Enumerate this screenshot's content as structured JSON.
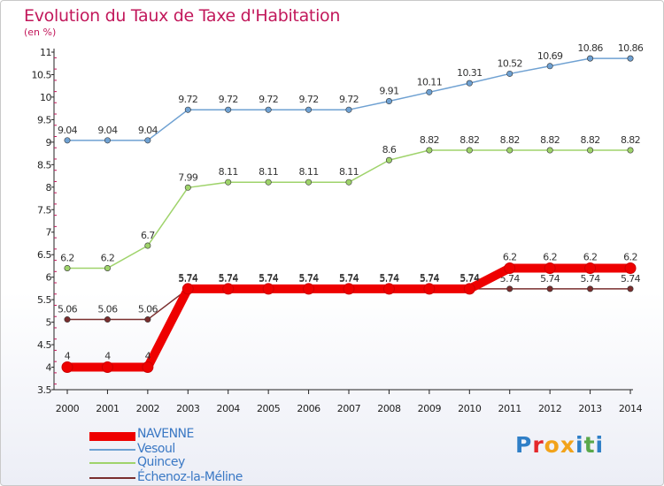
{
  "title": "Evolution du Taux de Taxe d'Habitation",
  "subtitle": "(en %)",
  "logo": {
    "text": "Proxiti",
    "letter_colors": [
      "#2f7fc7",
      "#e4282b",
      "#f2a31b",
      "#f2a31b",
      "#2f7fc7",
      "#5aa84a",
      "#2f7fc7"
    ]
  },
  "chart_data": {
    "type": "line",
    "x": [
      "2000",
      "2001",
      "2002",
      "2003",
      "2004",
      "2005",
      "2006",
      "2007",
      "2008",
      "2009",
      "2010",
      "2011",
      "2012",
      "2013",
      "2014"
    ],
    "ylim": [
      3.5,
      11
    ],
    "yticks": [
      "3.5",
      "4",
      "4.5",
      "5",
      "5.5",
      "6",
      "6.5",
      "7",
      "7.5",
      "8",
      "8.5",
      "9",
      "9.5",
      "10",
      "10.5",
      "11"
    ],
    "grid": false,
    "legend_position": "bottom-left",
    "series": [
      {
        "name": "NAVENNE",
        "color": "#ee0000",
        "values": [
          4,
          4,
          4,
          5.74,
          5.74,
          5.74,
          5.74,
          5.74,
          5.74,
          5.74,
          5.74,
          6.2,
          6.2,
          6.2,
          6.2
        ],
        "labels": [
          "4",
          "4",
          "4",
          "5.74",
          "5.74",
          "5.74",
          "5.74",
          "5.74",
          "5.74",
          "5.74",
          "5.74",
          "6.2",
          "6.2",
          "6.2",
          "6.2"
        ]
      },
      {
        "name": "Vesoul",
        "color": "#6fa1d2",
        "values": [
          9.04,
          9.04,
          9.04,
          9.72,
          9.72,
          9.72,
          9.72,
          9.72,
          9.91,
          10.11,
          10.31,
          10.52,
          10.69,
          10.86,
          10.86
        ],
        "labels": [
          "9.04",
          "9.04",
          "9.04",
          "9.72",
          "9.72",
          "9.72",
          "9.72",
          "9.72",
          "9.91",
          "10.11",
          "10.31",
          "10.52",
          "10.69",
          "10.86",
          "10.86"
        ]
      },
      {
        "name": "Quincey",
        "color": "#9fd36b",
        "values": [
          6.2,
          6.2,
          6.7,
          7.99,
          8.11,
          8.11,
          8.11,
          8.11,
          8.6,
          8.82,
          8.82,
          8.82,
          8.82,
          8.82,
          8.82
        ],
        "labels": [
          "6.2",
          "6.2",
          "6.7",
          "7.99",
          "8.11",
          "8.11",
          "8.11",
          "8.11",
          "8.6",
          "8.82",
          "8.82",
          "8.82",
          "8.82",
          "8.82",
          "8.82"
        ]
      },
      {
        "name": "Échenoz-la-Méline",
        "color": "#7a2e2e",
        "values": [
          5.06,
          5.06,
          5.06,
          5.74,
          5.74,
          5.74,
          5.74,
          5.74,
          5.74,
          5.74,
          5.74,
          5.74,
          5.74,
          5.74,
          5.74
        ],
        "labels": [
          "5.06",
          "5.06",
          "5.06",
          "5.74",
          "5.74",
          "5.74",
          "5.74",
          "5.74",
          "5.74",
          "5.74",
          "5.74",
          "5.74",
          "5.74",
          "5.74",
          "5.74"
        ]
      }
    ]
  }
}
